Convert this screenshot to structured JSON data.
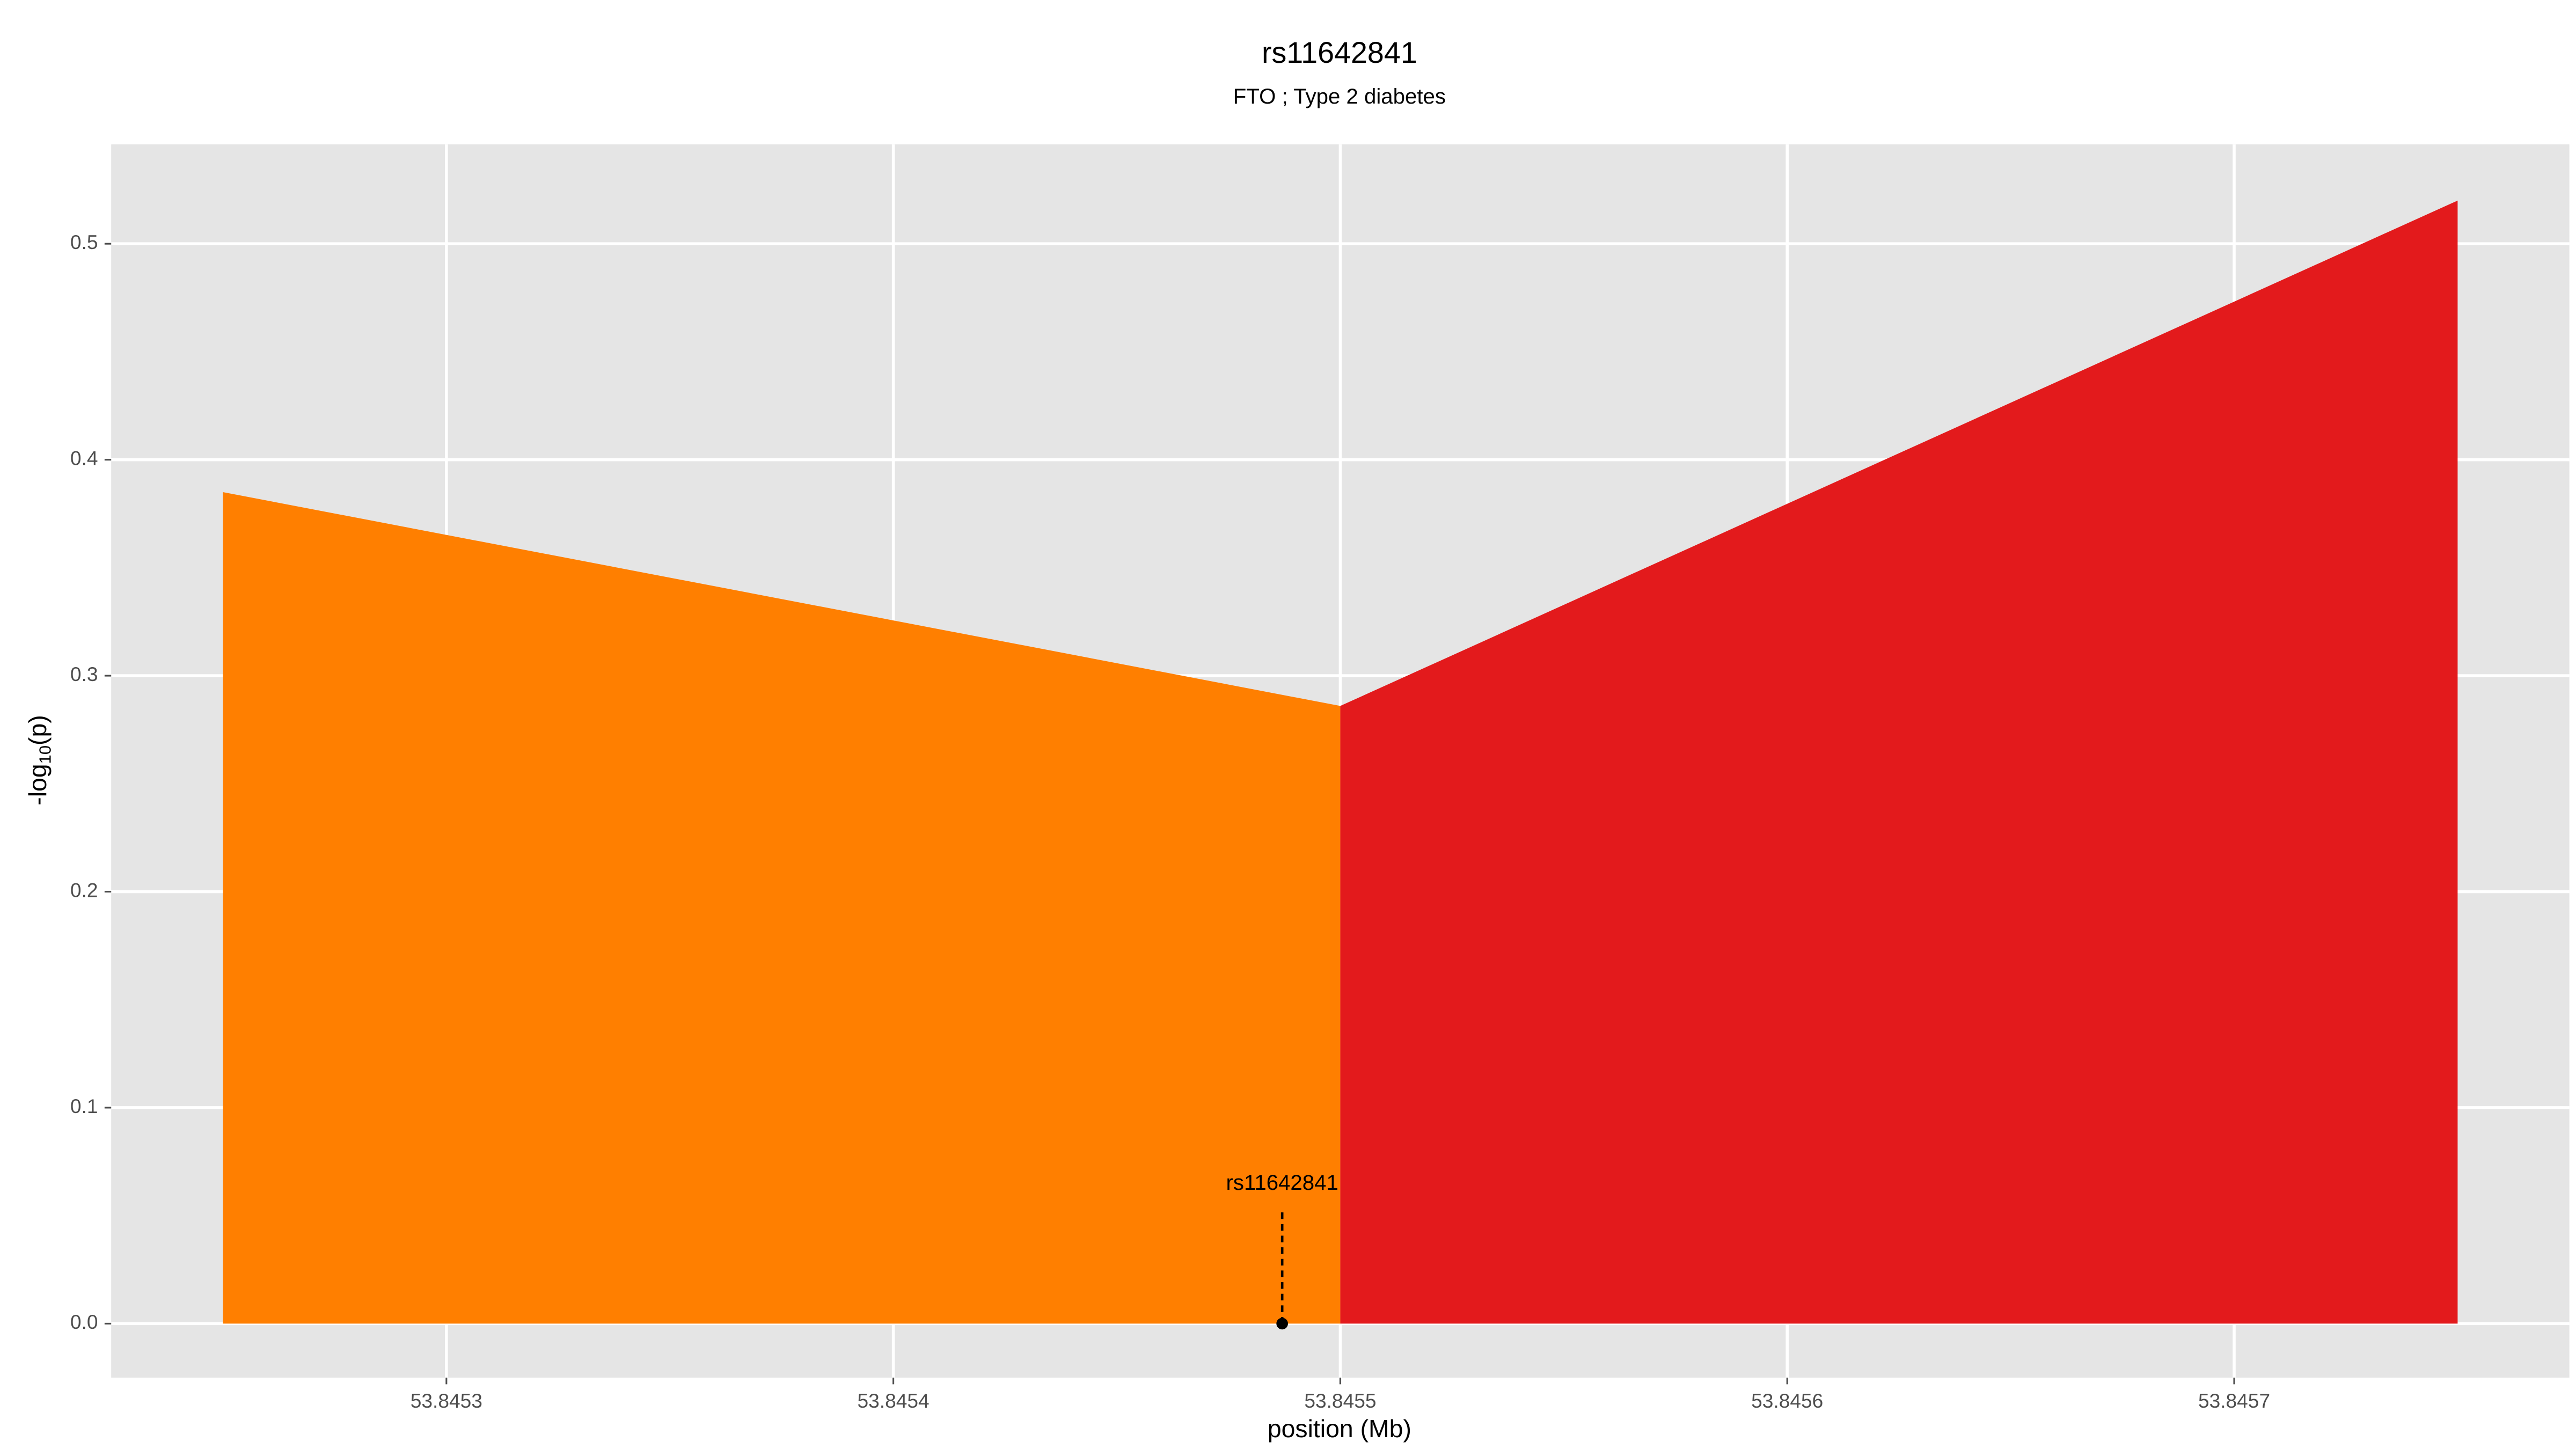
{
  "chart_data": {
    "type": "area",
    "title": "rs11642841",
    "subtitle": "FTO ; Type 2 diabetes",
    "x_label": "position (Mb)",
    "y_label": [
      "-log",
      "10",
      "(p)"
    ],
    "series": [
      {
        "color": "#ff7f00",
        "x": [
          53.84525,
          53.8455
        ],
        "values": [
          0.385,
          0.286
        ]
      },
      {
        "color": "#e31a1c",
        "x": [
          53.8455,
          53.84575
        ],
        "values": [
          0.286,
          0.52
        ]
      }
    ],
    "annotation": {
      "label": "rs11642841",
      "x": 53.845487,
      "y": 0
    },
    "xlim": [
      53.845225,
      53.845775
    ],
    "xticks": [
      53.8453,
      53.8454,
      53.8455,
      53.8456,
      53.8457
    ],
    "ylim": [
      -0.025,
      0.546
    ],
    "yticks": [
      {
        "value": 0,
        "label": "0.0"
      },
      0.1,
      0.2,
      0.3,
      0.4,
      0.5
    ],
    "grid": true,
    "background": "#e5e5e5"
  }
}
